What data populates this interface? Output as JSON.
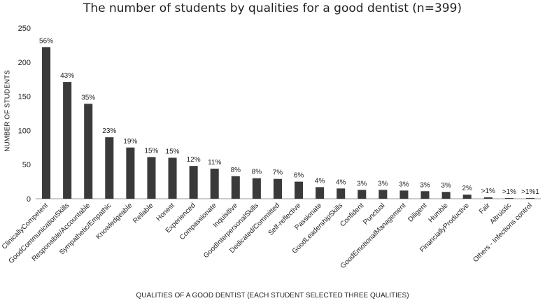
{
  "chart_data": {
    "type": "bar",
    "title": "The number of students by qualities for a good dentist (n=399)",
    "xlabel": "QUALITIES OF A GOOD DENTIST (EACH STUDENT SELECTED THREE QUALITIES)",
    "ylabel": "NUMBER OF STUDENTS",
    "ylim": [
      0,
      250
    ],
    "yticks": [
      "0",
      "50",
      "100",
      "150",
      "200",
      "250"
    ],
    "grid": false,
    "bar_color": "#3a3a3a",
    "categories": [
      "ClinicallyCompetent",
      "GoodCommunicationSkills",
      "Responsible/Accountable",
      "Sympathetic/Empathic",
      "Knowledgeable",
      "Reliable",
      "Honest",
      "Experienced",
      "Compassionate",
      "Inquisitive",
      "GoodInterpersonalSkills",
      "Dedicated/Committed",
      "Self-reflective",
      "Passionate",
      "GoodLeadershipSkills",
      "Confident",
      "Punctual",
      "GoodEmotionalManagement",
      "Diligent",
      "Humble",
      "FinanciallyProductive",
      "Fair",
      "Altruistic",
      "Others - Infections  control"
    ],
    "values": [
      222,
      171,
      139,
      90,
      75,
      61,
      60,
      48,
      44,
      33,
      30,
      29,
      25,
      17,
      15,
      13,
      13,
      12,
      11,
      10,
      6,
      2,
      1,
      1
    ],
    "labels": [
      "56%",
      "43%",
      "35%",
      "23%",
      "19%",
      "15%",
      "15%",
      "12%",
      "11%",
      "8%",
      "8%",
      "7%",
      "6%",
      "4%",
      "4%",
      "3%",
      "3%",
      "3%",
      "3%",
      "3%",
      "2%",
      ">1%",
      ">1%",
      ">1%1"
    ]
  }
}
